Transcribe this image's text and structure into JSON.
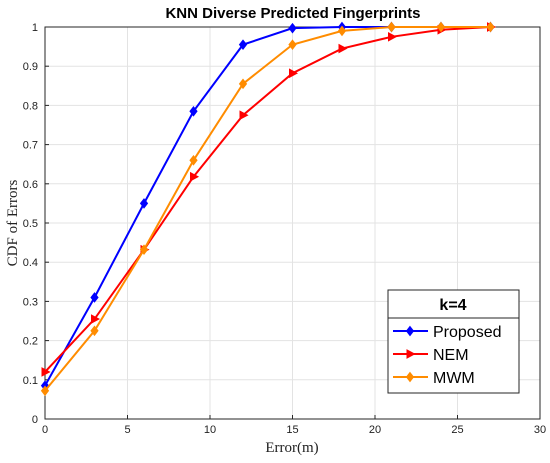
{
  "chart_data": {
    "type": "line",
    "title": "KNN Diverse Predicted Fingerprints",
    "xlabel": "Error(m)",
    "ylabel": "CDF of Errors",
    "xlim": [
      0,
      30
    ],
    "ylim": [
      0,
      1
    ],
    "xticks": [
      0,
      5,
      10,
      15,
      20,
      25,
      30
    ],
    "yticks": [
      0,
      0.1,
      0.2,
      0.3,
      0.4,
      0.5,
      0.6,
      0.7,
      0.8,
      0.9,
      1
    ],
    "grid": true,
    "legend": {
      "title": "k=4",
      "position": "bottom-right"
    },
    "x": [
      0,
      3,
      6,
      9,
      12,
      15,
      18,
      21,
      24,
      27
    ],
    "series": [
      {
        "name": "Proposed",
        "color": "#0000ff",
        "marker": "diamond",
        "values": [
          0.085,
          0.31,
          0.55,
          0.785,
          0.955,
          0.997,
          1.0,
          1.0,
          1.0,
          1.0
        ]
      },
      {
        "name": "NEM",
        "color": "#ff0000",
        "marker": "triangle-right",
        "values": [
          0.12,
          0.255,
          0.432,
          0.618,
          0.775,
          0.882,
          0.945,
          0.975,
          0.993,
          1.0
        ]
      },
      {
        "name": "MWM",
        "color": "#ff8c00",
        "marker": "diamond",
        "values": [
          0.072,
          0.225,
          0.432,
          0.66,
          0.855,
          0.955,
          0.99,
          1.0,
          1.0,
          1.0
        ]
      }
    ]
  }
}
